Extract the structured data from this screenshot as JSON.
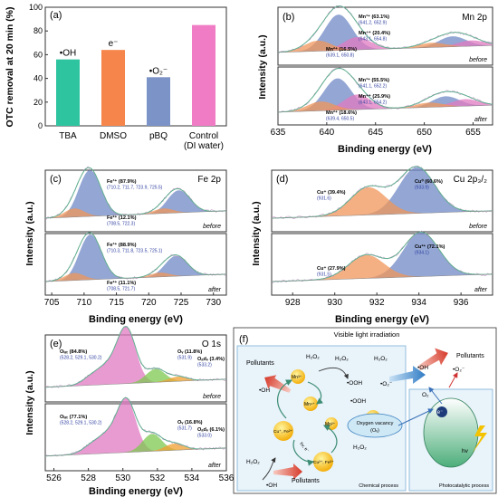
{
  "chart_data": [
    {
      "panel": "(a)",
      "type": "bar",
      "ylabel": "OTC removal at 20 min (%)",
      "ylim": [
        0,
        100
      ],
      "yticks": [
        "0",
        "20",
        "40",
        "60",
        "80",
        "100"
      ],
      "categories": [
        "TBA",
        "DMSO",
        "pBQ",
        "Control\n(DI water)"
      ],
      "bar_labels": [
        "•OH",
        "e⁻",
        "•O₂⁻",
        ""
      ],
      "values": [
        56,
        64,
        41,
        85
      ],
      "colors": [
        "#2ec4a0",
        "#f5854a",
        "#7c93c8",
        "#f07cc5"
      ]
    },
    {
      "panel": "(b)",
      "type": "line",
      "title": "Mn 2p",
      "xlabel": "Binding energy (eV)",
      "ylabel": "Intensity (a.u.)",
      "xlim": [
        635,
        657
      ],
      "xticks": [
        "635",
        "640",
        "645",
        "650",
        "655"
      ],
      "subpanels": [
        {
          "condition": "before",
          "peaks": [
            {
              "label": "Mn³⁺ (63.1%)",
              "positions": "(641.2, 652.9)",
              "center": [
                641.2,
                652.9
              ],
              "amp": [
                0.62,
                0.18
              ],
              "color": "#6f88c6"
            },
            {
              "label": "Mn⁴⁺ (20.4%)",
              "positions": "(643.1, 654.8)",
              "center": [
                643.1,
                654.8
              ],
              "amp": [
                0.22,
                0.1
              ],
              "color": "#e07ac0"
            },
            {
              "label": "Mn²⁺ (16.5%)",
              "positions": "(639.1, 650.8)",
              "center": [
                639.1,
                650.8
              ],
              "amp": [
                0.18,
                0.08
              ],
              "color": "#f0955a"
            }
          ]
        },
        {
          "condition": "after",
          "peaks": [
            {
              "label": "Mn³⁺ (55.5%)",
              "positions": "(641.1, 652.2)",
              "center": [
                641.1,
                652.2
              ],
              "amp": [
                0.55,
                0.18
              ],
              "color": "#6f88c6"
            },
            {
              "label": "Mn⁴⁺ (25.9%)",
              "positions": "(643.1, 654.2)",
              "center": [
                643.1,
                654.2
              ],
              "amp": [
                0.26,
                0.12
              ],
              "color": "#e07ac0"
            },
            {
              "label": "Mn²⁺ (18.6%)",
              "positions": "(639.4, 650.5)",
              "center": [
                639.4,
                650.5
              ],
              "amp": [
                0.16,
                0.08
              ],
              "color": "#f0955a"
            }
          ]
        }
      ]
    },
    {
      "panel": "(c)",
      "type": "line",
      "title": "Fe 2p",
      "xlabel": "Binding energy (eV)",
      "ylabel": "Intensity (a.u.)",
      "xlim": [
        704,
        732
      ],
      "xticks": [
        "705",
        "710",
        "715",
        "720",
        "725",
        "730"
      ],
      "subpanels": [
        {
          "condition": "before",
          "peaks": [
            {
              "label": "Fe³⁺ (87.9%)",
              "positions": "(710.2, 711.7, 723.9, 725.5)",
              "center": [
                710.2,
                711.7,
                723.9,
                725.5
              ],
              "amp": [
                0.45,
                0.4,
                0.22,
                0.2
              ],
              "color": "#6f88c6"
            },
            {
              "label": "Fe²⁺ (12.1%)",
              "positions": "(708.5, 722.3)",
              "center": [
                708.5,
                722.3
              ],
              "amp": [
                0.14,
                0.08
              ],
              "color": "#f0955a"
            }
          ]
        },
        {
          "condition": "after",
          "peaks": [
            {
              "label": "Fe³⁺ (88.9%)",
              "positions": "(710.3, 711.8, 723.5, 725.1)",
              "center": [
                710.3,
                711.8,
                723.5,
                725.1
              ],
              "amp": [
                0.45,
                0.38,
                0.2,
                0.18
              ],
              "color": "#6f88c6"
            },
            {
              "label": "Fe²⁺ (11.1%)",
              "positions": "(708.5, 721.7)",
              "center": [
                708.5,
                721.7
              ],
              "amp": [
                0.12,
                0.07
              ],
              "color": "#f0955a"
            }
          ]
        }
      ]
    },
    {
      "panel": "(d)",
      "type": "line",
      "title": "Cu 2p₃/₂",
      "xlabel": "Binding energy (eV)",
      "ylabel": "Intensity (a.u.)",
      "xlim": [
        927,
        937.5
      ],
      "xticks": [
        "928",
        "930",
        "932",
        "934",
        "936"
      ],
      "subpanels": [
        {
          "condition": "before",
          "peaks": [
            {
              "label": "Cu⁰ (60.6%)",
              "positions": "(933.9)",
              "center": [
                933.9
              ],
              "amp": [
                0.75
              ],
              "color": "#6f88c6"
            },
            {
              "label": "Cu⁺ (39.4%)",
              "positions": "(931.6)",
              "center": [
                931.6
              ],
              "amp": [
                0.45
              ],
              "color": "#f0955a"
            }
          ]
        },
        {
          "condition": "after",
          "peaks": [
            {
              "label": "Cu²⁺ (72.1%)",
              "positions": "(934.1)",
              "center": [
                934.1
              ],
              "amp": [
                0.72
              ],
              "color": "#6f88c6"
            },
            {
              "label": "Cu⁺ (27.9%)",
              "positions": "(931.5)",
              "center": [
                931.5
              ],
              "amp": [
                0.38
              ],
              "color": "#f0955a"
            }
          ]
        }
      ]
    },
    {
      "panel": "(e)",
      "type": "line",
      "title": "O 1s",
      "xlabel": "Binding energy (eV)",
      "ylabel": "Intensity (a.u.)",
      "xlim": [
        525.5,
        536
      ],
      "xticks": [
        "526",
        "528",
        "530",
        "532",
        "534",
        "536"
      ],
      "subpanels": [
        {
          "condition": "before",
          "peaks": [
            {
              "label": "Oₗₐₜ (84.8%)",
              "positions": "(528.2, 529.1, 530.2)",
              "center": [
                528.2,
                529.1,
                530.2
              ],
              "amp": [
                0.12,
                0.22,
                0.82
              ],
              "color": "#e07ac0"
            },
            {
              "label": "Oᵥ (11.8%)",
              "positions": "(531.9)",
              "center": [
                531.9
              ],
              "amp": [
                0.2
              ],
              "color": "#7ec850"
            },
            {
              "label": "Oₐdₛ (3.4%)",
              "positions": "(533.2)",
              "center": [
                533.2
              ],
              "amp": [
                0.07
              ],
              "color": "#f0a030"
            }
          ]
        },
        {
          "condition": "after",
          "peaks": [
            {
              "label": "Oₗₐₜ (77.1%)",
              "positions": "(528.2, 529.1, 530.2)",
              "center": [
                528.2,
                529.1,
                530.2
              ],
              "amp": [
                0.12,
                0.22,
                0.78
              ],
              "color": "#e07ac0"
            },
            {
              "label": "Oᵥ (16.8%)",
              "positions": "(531.7)",
              "center": [
                531.7
              ],
              "amp": [
                0.26
              ],
              "color": "#7ec850"
            },
            {
              "label": "Oₐdₛ (6.1%)",
              "positions": "(533.0)",
              "center": [
                533.0
              ],
              "amp": [
                0.1
              ],
              "color": "#f0a030"
            }
          ]
        }
      ]
    }
  ],
  "scheme": {
    "panel": "(f)",
    "title": "Visible light irradiation",
    "labels": {
      "pollutants_tl": "Pollutants",
      "pollutants_tr": "Pollutants",
      "pollutants_b": "Pollutants",
      "h2o2_1": "H₂O₂",
      "h2o2_2": "H₂O₂",
      "h2o2_3": "H₂O₂",
      "h2o2_4": "H₂O₂",
      "h2o2_5": "H₂O₂",
      "oh_1": "•OH",
      "oh_2": "•OH",
      "oh_3": "•OH",
      "ooh_1": "•OOH",
      "ooh_2": "•OOH",
      "o2m_1": "•O₂⁻",
      "o2m_2": "•O₂⁻",
      "o2": "O₂",
      "mn3": "Mn³⁺",
      "mn4": "Mn⁴⁺",
      "mn2": "Mn²⁺",
      "cu_fe_left": "Cu⁺, Fe²⁺",
      "cu_fe_right": "Cu²⁺, Fe³⁺",
      "oxygen_vacancy": "Oxygen vacancy",
      "ov": "(Oᵥ)",
      "hv_arrow": "hv, e⁻",
      "electron": "e⁻",
      "hv": "hv",
      "chemical_process": "Chemical process",
      "photocatalytic_process": "Photocatalytic process"
    }
  }
}
